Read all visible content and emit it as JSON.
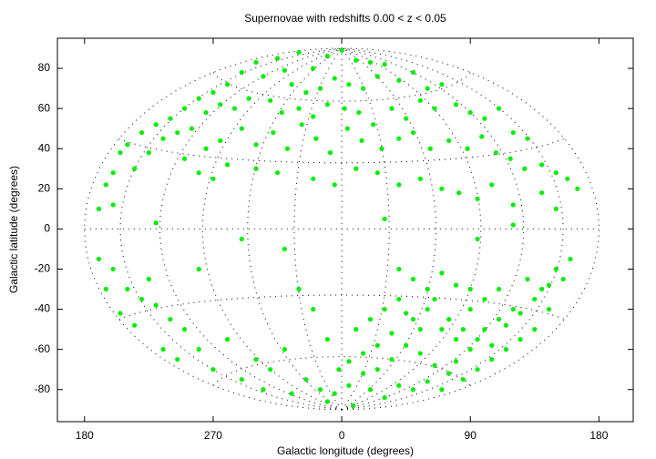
{
  "chart_data": {
    "type": "scatter",
    "title": "Supernovae with redshifts 0.00 < z < 0.05",
    "x_label": "Galactic longitude (degrees)",
    "y_label": "Galactic latitude (degrees)",
    "color": "#00ee00",
    "xlim": [
      -199,
      204
    ],
    "ylim": [
      -96,
      95
    ],
    "xticks": [
      {
        "value": -180,
        "label": "180"
      },
      {
        "value": -90,
        "label": "270"
      },
      0,
      90,
      {
        "value": 180,
        "label": "180"
      }
    ],
    "yticks": [
      -80,
      -60,
      -40,
      -20,
      0,
      20,
      40,
      60,
      80
    ],
    "x": [
      -60,
      -45,
      -30,
      -20,
      -10,
      0,
      10,
      20,
      30,
      -70,
      -80,
      -55,
      -40,
      -35,
      -25,
      -15,
      -5,
      5,
      15,
      25,
      40,
      50,
      60,
      70,
      -90,
      -100,
      -110,
      -120,
      -130,
      -95,
      -85,
      -75,
      -65,
      -50,
      -42,
      -30,
      -20,
      -10,
      2,
      12,
      22,
      35,
      45,
      55,
      65,
      80,
      90,
      100,
      110,
      120,
      130,
      -140,
      -150,
      -160,
      -155,
      -125,
      -115,
      -105,
      -95,
      -85,
      -70,
      -60,
      -48,
      -38,
      -28,
      -18,
      -8,
      4,
      14,
      28,
      40,
      50,
      62,
      75,
      88,
      98,
      108,
      118,
      128,
      140,
      150,
      158,
      165,
      -165,
      -145,
      -135,
      -110,
      -100,
      -90,
      -80,
      -60,
      -45,
      -20,
      -5,
      10,
      25,
      40,
      55,
      70,
      82,
      95,
      105,
      120,
      140,
      150,
      -170,
      -160,
      -130,
      -70,
      -40,
      30,
      95,
      120,
      -100,
      40,
      50,
      60,
      70,
      80,
      90,
      100,
      110,
      120,
      130,
      140,
      150,
      160,
      155,
      145,
      135,
      125,
      115,
      105,
      95,
      85,
      75,
      65,
      55,
      45,
      35,
      25,
      15,
      5,
      -5,
      -15,
      -25,
      40,
      50,
      60,
      70,
      80,
      90,
      100,
      110,
      60,
      50,
      70,
      80,
      90,
      40,
      30,
      20,
      10,
      -10,
      -20,
      -30,
      -40,
      -50,
      -60,
      -70,
      -80,
      -90,
      -100,
      -110,
      -120,
      -130,
      -140,
      -150,
      -160,
      -155,
      -145,
      -125,
      -115,
      -135,
      -170,
      -165,
      65,
      75,
      85,
      95,
      105,
      115,
      125,
      135,
      145,
      55,
      45,
      35,
      25,
      15,
      5,
      -2,
      -10,
      8,
      20,
      30,
      -35,
      -55
    ],
    "values": [
      83,
      85,
      88,
      80,
      86,
      89,
      84,
      83,
      82,
      78,
      72,
      76,
      79,
      72,
      68,
      70,
      75,
      72,
      70,
      76,
      74,
      78,
      70,
      72,
      68,
      65,
      60,
      55,
      52,
      58,
      62,
      60,
      65,
      64,
      58,
      60,
      56,
      62,
      60,
      58,
      52,
      60,
      55,
      64,
      60,
      62,
      58,
      55,
      60,
      48,
      45,
      48,
      42,
      28,
      38,
      45,
      48,
      50,
      40,
      44,
      50,
      42,
      48,
      40,
      52,
      45,
      38,
      50,
      44,
      40,
      45,
      48,
      40,
      44,
      40,
      46,
      38,
      35,
      30,
      32,
      28,
      25,
      20,
      22,
      30,
      38,
      35,
      28,
      25,
      32,
      30,
      28,
      25,
      22,
      30,
      28,
      22,
      25,
      20,
      18,
      15,
      22,
      12,
      18,
      10,
      10,
      12,
      3,
      -5,
      -10,
      5,
      -5,
      2,
      -20,
      -20,
      -25,
      -30,
      -22,
      -28,
      -30,
      -35,
      -30,
      -40,
      -25,
      -30,
      -20,
      -15,
      -25,
      -40,
      -50,
      -55,
      -60,
      -65,
      -70,
      -75,
      -72,
      -68,
      -62,
      -58,
      -65,
      -70,
      -72,
      -78,
      -82,
      -80,
      -75,
      -78,
      -80,
      -76,
      -80,
      -66,
      -60,
      -50,
      -45,
      -40,
      -45,
      -50,
      -55,
      -40,
      -35,
      -40,
      -45,
      -50,
      -55,
      -40,
      -30,
      -60,
      -70,
      -65,
      -75,
      -55,
      -70,
      -60,
      -50,
      -45,
      -38,
      -35,
      -30,
      -20,
      -42,
      -48,
      -60,
      -65,
      -25,
      -15,
      -30,
      -35,
      -45,
      -50,
      -55,
      -58,
      -48,
      -42,
      -35,
      -28,
      -50,
      -42,
      -52,
      -58,
      -62,
      -66,
      -70,
      -86,
      -88,
      -80,
      -84,
      -82,
      -80
    ]
  }
}
